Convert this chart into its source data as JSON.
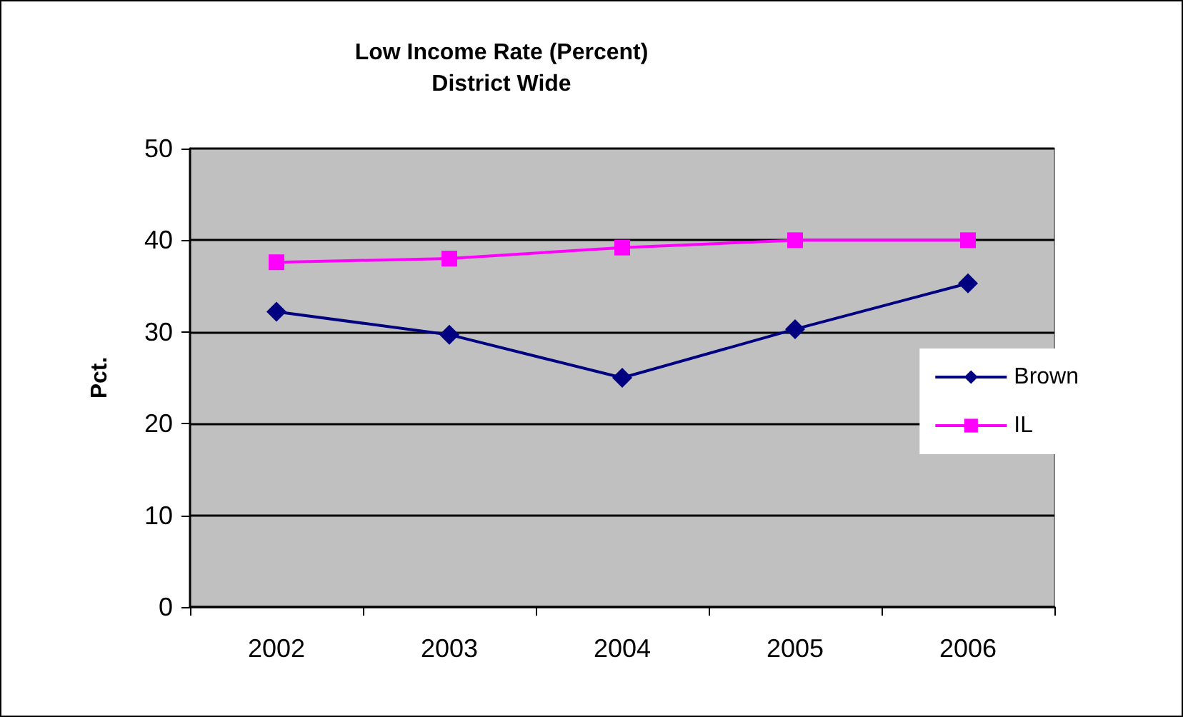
{
  "chart_data": {
    "type": "line",
    "title": "Low Income Rate (Percent)\nDistrict Wide",
    "ylabel": "Pct.",
    "categories": [
      "2002",
      "2003",
      "2004",
      "2005",
      "2006"
    ],
    "series": [
      {
        "name": "Brown",
        "color": "#000080",
        "marker": "diamond",
        "values": [
          32.2,
          29.7,
          25.0,
          30.3,
          35.3
        ]
      },
      {
        "name": "IL",
        "color": "#ff00ff",
        "marker": "square",
        "values": [
          37.6,
          38.0,
          39.2,
          40.0,
          40.0
        ]
      }
    ],
    "ylim": [
      0,
      50
    ],
    "yticks": [
      0,
      10,
      20,
      30,
      40,
      50
    ],
    "grid": "y",
    "legend": "right"
  }
}
